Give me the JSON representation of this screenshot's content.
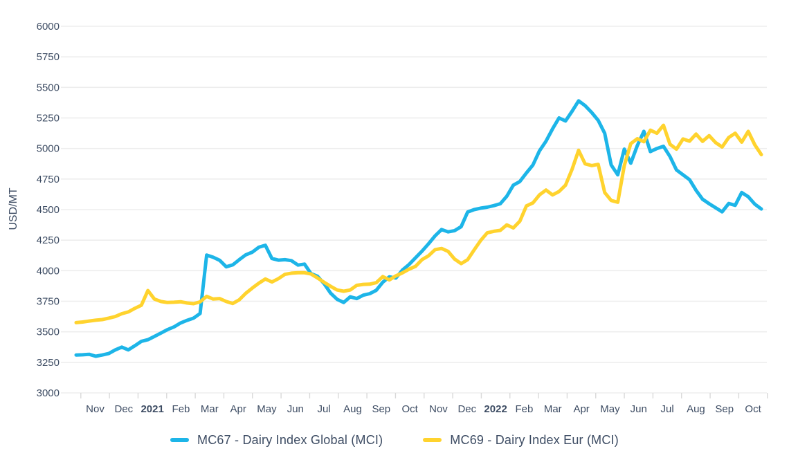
{
  "chart_data": {
    "type": "line",
    "title": "",
    "xlabel": "",
    "ylabel": "USD/MT",
    "ylim": [
      3000,
      6000
    ],
    "yticks": [
      3000,
      3250,
      3500,
      3750,
      4000,
      4250,
      4500,
      4750,
      5000,
      5250,
      5500,
      5750,
      6000
    ],
    "grid": "horizontal",
    "legend_position": "bottom",
    "x_axis": {
      "labels": [
        "Nov",
        "Dec",
        "2021",
        "Feb",
        "Mar",
        "Apr",
        "May",
        "Jun",
        "Jul",
        "Aug",
        "Sep",
        "Oct",
        "Nov",
        "Dec",
        "2022",
        "Feb",
        "Mar",
        "Apr",
        "May",
        "Jun",
        "Jul",
        "Aug",
        "Sep",
        "Oct"
      ],
      "bold_labels": [
        "2021",
        "2022"
      ],
      "period": "weekly data, Nov 2020 - Oct 2022"
    },
    "colors": {
      "grid": "#ededed",
      "tick": "#d9d9d9",
      "axis_text": "#3d4c63"
    },
    "series": [
      {
        "name": "MC67 - Dairy Index Global (MCI)",
        "color": "#1db5e8",
        "values": [
          3310,
          3312,
          3316,
          3300,
          3310,
          3322,
          3352,
          3375,
          3352,
          3386,
          3422,
          3435,
          3462,
          3490,
          3518,
          3540,
          3572,
          3594,
          3612,
          3650,
          4128,
          4110,
          4085,
          4032,
          4048,
          4090,
          4130,
          4152,
          4192,
          4208,
          4100,
          4086,
          4090,
          4082,
          4046,
          4054,
          3976,
          3954,
          3894,
          3816,
          3766,
          3740,
          3786,
          3772,
          3800,
          3812,
          3840,
          3906,
          3950,
          3940,
          4005,
          4050,
          4105,
          4160,
          4220,
          4285,
          4337,
          4318,
          4328,
          4360,
          4480,
          4500,
          4512,
          4520,
          4532,
          4548,
          4610,
          4700,
          4730,
          4800,
          4865,
          4980,
          5060,
          5160,
          5250,
          5225,
          5305,
          5390,
          5350,
          5295,
          5230,
          5125,
          4865,
          4785,
          4995,
          4880,
          5025,
          5140,
          4975,
          5000,
          5018,
          4935,
          4825,
          4785,
          4745,
          4658,
          4585,
          4548,
          4515,
          4482,
          4550,
          4535,
          4640,
          4605,
          4545,
          4505
        ]
      },
      {
        "name": "MC69 - Dairy Index Eur (MCI)",
        "color": "#ffd32e",
        "values": [
          3575,
          3580,
          3588,
          3595,
          3600,
          3612,
          3625,
          3648,
          3663,
          3692,
          3718,
          3838,
          3768,
          3748,
          3740,
          3742,
          3746,
          3736,
          3730,
          3745,
          3790,
          3768,
          3772,
          3748,
          3732,
          3762,
          3815,
          3858,
          3898,
          3932,
          3908,
          3935,
          3970,
          3980,
          3983,
          3983,
          3973,
          3940,
          3905,
          3872,
          3842,
          3832,
          3842,
          3880,
          3888,
          3890,
          3902,
          3952,
          3925,
          3958,
          3982,
          4012,
          4035,
          4090,
          4122,
          4172,
          4182,
          4158,
          4095,
          4058,
          4090,
          4170,
          4248,
          4310,
          4322,
          4330,
          4375,
          4350,
          4405,
          4530,
          4555,
          4620,
          4660,
          4620,
          4648,
          4700,
          4830,
          4985,
          4875,
          4860,
          4870,
          4640,
          4575,
          4560,
          4860,
          5040,
          5080,
          5055,
          5150,
          5125,
          5190,
          5035,
          4995,
          5078,
          5060,
          5118,
          5058,
          5105,
          5048,
          5012,
          5090,
          5125,
          5052,
          5140,
          5030,
          4950
        ]
      }
    ],
    "legend": [
      {
        "label": "MC67 - Dairy Index Global (MCI)",
        "color": "#1db5e8"
      },
      {
        "label": "MC69 - Dairy Index Eur (MCI)",
        "color": "#ffd32e"
      }
    ]
  }
}
